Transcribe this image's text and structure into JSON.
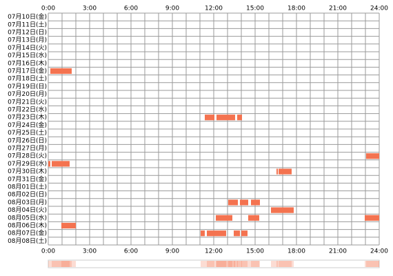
{
  "chart_data": {
    "type": "timeline",
    "categories": [
      "07月10日(金)",
      "07月11日(土)",
      "07月12日(日)",
      "07月13日(月)",
      "07月14日(火)",
      "07月15日(水)",
      "07月16日(木)",
      "07月17日(金)",
      "07月18日(土)",
      "07月19日(日)",
      "07月20日(月)",
      "07月21日(火)",
      "07月22日(水)",
      "07月23日(木)",
      "07月24日(金)",
      "07月25日(土)",
      "07月26日(日)",
      "07月27日(月)",
      "07月28日(火)",
      "07月29日(水)",
      "07月30日(木)",
      "07月31日(金)",
      "08月01日(土)",
      "08月02日(日)",
      "08月03日(月)",
      "08月04日(火)",
      "08月05日(水)",
      "08月06日(木)",
      "08月07日(金)",
      "08月08日(土)"
    ],
    "values": [
      [],
      [],
      [],
      [],
      [],
      [],
      [],
      [
        [
          0.15,
          1.7
        ]
      ],
      [],
      [],
      [],
      [],
      [],
      [
        [
          11.35,
          12.05
        ],
        [
          12.2,
          13.55
        ],
        [
          13.7,
          14.05
        ]
      ],
      [],
      [],
      [],
      [],
      [
        [
          23.05,
          24
        ]
      ],
      [
        [
          0,
          0.15
        ],
        [
          0.25,
          1.55
        ]
      ],
      [
        [
          16.55,
          16.65
        ],
        [
          16.7,
          17.65
        ]
      ],
      [],
      [],
      [],
      [
        [
          13.05,
          13.75
        ],
        [
          13.9,
          14.5
        ],
        [
          14.7,
          15.35
        ]
      ],
      [
        [
          16.15,
          17.8
        ]
      ],
      [
        [
          12.15,
          13.35
        ],
        [
          14.5,
          15.3
        ],
        [
          22.95,
          24
        ]
      ],
      [
        [
          0.95,
          2
        ]
      ],
      [
        [
          11.05,
          11.35
        ],
        [
          11.5,
          12.9
        ],
        [
          13.45,
          13.9
        ],
        [
          14,
          14.45
        ]
      ],
      []
    ],
    "color": "#f47350",
    "xlim": [
      0,
      24
    ],
    "xticks": [
      {
        "value": 0,
        "label": "0:00"
      },
      {
        "value": 3,
        "label": "3:00"
      },
      {
        "value": 6,
        "label": "6:00"
      },
      {
        "value": 9,
        "label": "9:00"
      },
      {
        "value": 12,
        "label": "12:00"
      },
      {
        "value": 15,
        "label": "15:00"
      },
      {
        "value": 18,
        "label": "18:00"
      },
      {
        "value": 21,
        "label": "21:00"
      },
      {
        "value": 24,
        "label": "24:00"
      }
    ],
    "grid": true
  }
}
